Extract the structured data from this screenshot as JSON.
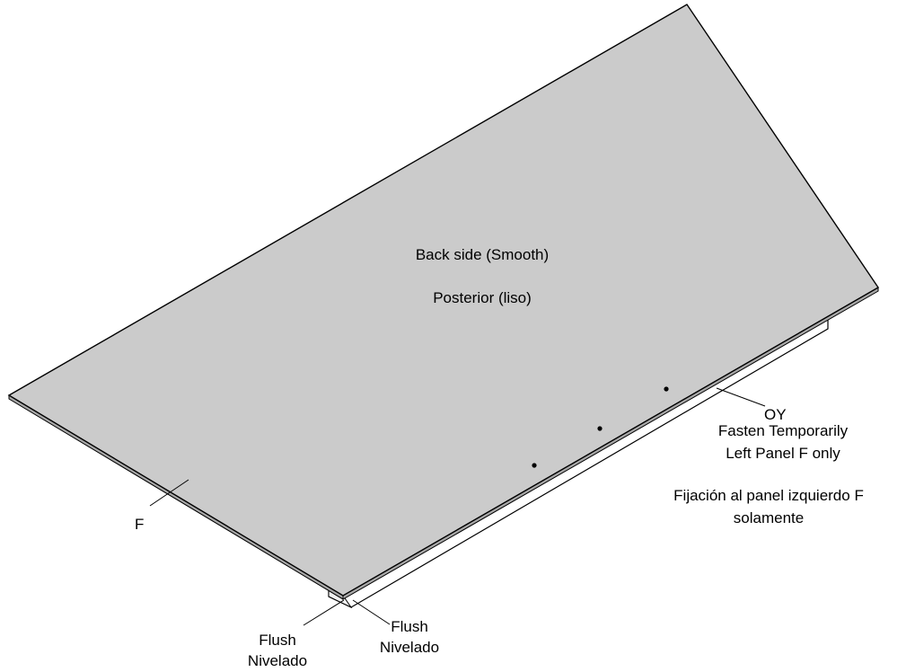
{
  "panel": {
    "label_en": "Back side (Smooth)",
    "label_es": "Posterior (liso)"
  },
  "callouts": {
    "part_f": "F",
    "part_oy": "OY",
    "fasten_en_line1": "Fasten Temporarily",
    "fasten_en_line2": "Left Panel F only",
    "fasten_es_line1": "Fijación al panel izquierdo F",
    "fasten_es_line2": "solamente",
    "flush_left_en": "Flush",
    "flush_left_es": "Nivelado",
    "flush_right_en": "Flush",
    "flush_right_es": "Nivelado"
  },
  "colors": {
    "panel_fill": "#cbcbcb",
    "panel_edge": "#a8a8a8",
    "outline": "#000000",
    "rail_fill": "#ffffff"
  }
}
